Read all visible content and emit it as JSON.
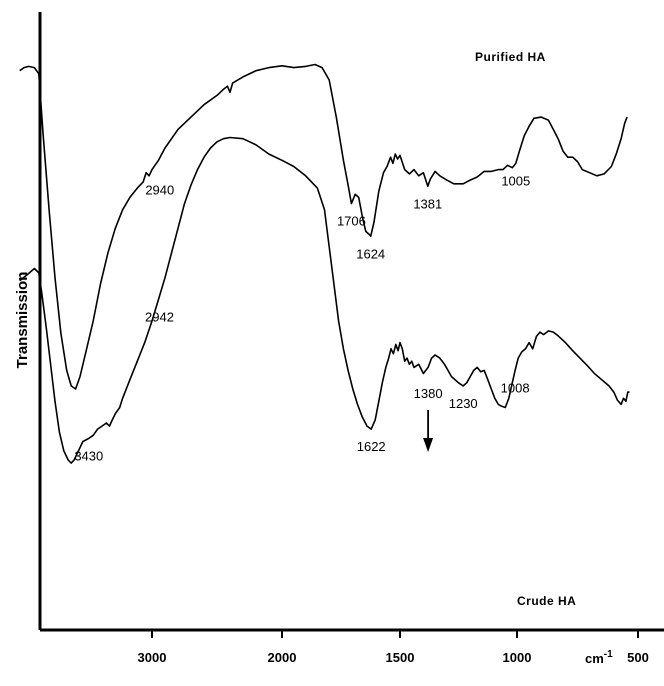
{
  "chart_data": {
    "type": "line",
    "xlabel": "cm-1",
    "ylabel": "Transmission",
    "x_axis_reversed": true,
    "x_ticks": [
      {
        "value": 3000,
        "label": "3000"
      },
      {
        "value": 2000,
        "label": "2000"
      },
      {
        "value": 1500,
        "label": "1500"
      },
      {
        "value": 1000,
        "label": "1000"
      },
      {
        "value": 500,
        "label": "500"
      }
    ],
    "series": [
      {
        "name": "Purified HA",
        "points": [
          [
            3900,
            0.905
          ],
          [
            3870,
            0.91
          ],
          [
            3840,
            0.912
          ],
          [
            3800,
            0.91
          ],
          [
            3770,
            0.9
          ],
          [
            3740,
            0.8
          ],
          [
            3700,
            0.68
          ],
          [
            3660,
            0.57
          ],
          [
            3620,
            0.48
          ],
          [
            3580,
            0.42
          ],
          [
            3550,
            0.395
          ],
          [
            3520,
            0.39
          ],
          [
            3490,
            0.41
          ],
          [
            3450,
            0.45
          ],
          [
            3400,
            0.5
          ],
          [
            3350,
            0.56
          ],
          [
            3300,
            0.61
          ],
          [
            3250,
            0.65
          ],
          [
            3200,
            0.68
          ],
          [
            3150,
            0.7
          ],
          [
            3100,
            0.715
          ],
          [
            3060,
            0.725
          ],
          [
            3040,
            0.74
          ],
          [
            3020,
            0.735
          ],
          [
            3000,
            0.745
          ],
          [
            2950,
            0.76
          ],
          [
            2900,
            0.78
          ],
          [
            2800,
            0.81
          ],
          [
            2700,
            0.83
          ],
          [
            2600,
            0.85
          ],
          [
            2500,
            0.865
          ],
          [
            2450,
            0.875
          ],
          [
            2420,
            0.88
          ],
          [
            2400,
            0.87
          ],
          [
            2380,
            0.885
          ],
          [
            2300,
            0.895
          ],
          [
            2200,
            0.905
          ],
          [
            2100,
            0.91
          ],
          [
            2000,
            0.913
          ],
          [
            1950,
            0.91
          ],
          [
            1900,
            0.912
          ],
          [
            1860,
            0.915
          ],
          [
            1830,
            0.91
          ],
          [
            1800,
            0.89
          ],
          [
            1770,
            0.83
          ],
          [
            1740,
            0.76
          ],
          [
            1720,
            0.72
          ],
          [
            1706,
            0.69
          ],
          [
            1690,
            0.705
          ],
          [
            1675,
            0.7
          ],
          [
            1660,
            0.67
          ],
          [
            1645,
            0.645
          ],
          [
            1630,
            0.64
          ],
          [
            1624,
            0.637
          ],
          [
            1610,
            0.66
          ],
          [
            1590,
            0.71
          ],
          [
            1570,
            0.74
          ],
          [
            1555,
            0.75
          ],
          [
            1540,
            0.765
          ],
          [
            1530,
            0.755
          ],
          [
            1520,
            0.77
          ],
          [
            1510,
            0.762
          ],
          [
            1500,
            0.768
          ],
          [
            1480,
            0.745
          ],
          [
            1460,
            0.738
          ],
          [
            1440,
            0.745
          ],
          [
            1420,
            0.735
          ],
          [
            1400,
            0.74
          ],
          [
            1381,
            0.718
          ],
          [
            1370,
            0.73
          ],
          [
            1350,
            0.742
          ],
          [
            1330,
            0.735
          ],
          [
            1300,
            0.728
          ],
          [
            1270,
            0.722
          ],
          [
            1230,
            0.722
          ],
          [
            1200,
            0.728
          ],
          [
            1170,
            0.733
          ],
          [
            1140,
            0.742
          ],
          [
            1110,
            0.742
          ],
          [
            1080,
            0.745
          ],
          [
            1060,
            0.745
          ],
          [
            1040,
            0.752
          ],
          [
            1020,
            0.748
          ],
          [
            1005,
            0.755
          ],
          [
            990,
            0.775
          ],
          [
            970,
            0.8
          ],
          [
            950,
            0.815
          ],
          [
            930,
            0.828
          ],
          [
            900,
            0.83
          ],
          [
            870,
            0.825
          ],
          [
            850,
            0.81
          ],
          [
            830,
            0.795
          ],
          [
            810,
            0.775
          ],
          [
            790,
            0.765
          ],
          [
            770,
            0.765
          ],
          [
            750,
            0.758
          ],
          [
            730,
            0.745
          ],
          [
            700,
            0.74
          ],
          [
            670,
            0.735
          ],
          [
            640,
            0.738
          ],
          [
            610,
            0.75
          ],
          [
            590,
            0.77
          ],
          [
            570,
            0.795
          ],
          [
            555,
            0.82
          ],
          [
            545,
            0.83
          ]
        ],
        "peak_labels": [
          {
            "x": 2940,
            "y": 0.74,
            "label": "2940"
          },
          {
            "x": 1706,
            "y": 0.69,
            "label": "1706"
          },
          {
            "x": 1624,
            "y": 0.637,
            "label": "1624"
          },
          {
            "x": 1381,
            "y": 0.718,
            "label": "1381"
          },
          {
            "x": 1005,
            "y": 0.755,
            "label": "1005"
          }
        ]
      },
      {
        "name": "Crude HA",
        "points": [
          [
            3900,
            0.565
          ],
          [
            3850,
            0.575
          ],
          [
            3800,
            0.585
          ],
          [
            3770,
            0.578
          ],
          [
            3750,
            0.545
          ],
          [
            3720,
            0.49
          ],
          [
            3690,
            0.43
          ],
          [
            3660,
            0.37
          ],
          [
            3630,
            0.32
          ],
          [
            3600,
            0.29
          ],
          [
            3570,
            0.275
          ],
          [
            3550,
            0.27
          ],
          [
            3530,
            0.275
          ],
          [
            3500,
            0.29
          ],
          [
            3470,
            0.305
          ],
          [
            3430,
            0.31
          ],
          [
            3400,
            0.315
          ],
          [
            3370,
            0.325
          ],
          [
            3340,
            0.33
          ],
          [
            3310,
            0.335
          ],
          [
            3290,
            0.33
          ],
          [
            3270,
            0.34
          ],
          [
            3250,
            0.35
          ],
          [
            3220,
            0.36
          ],
          [
            3200,
            0.375
          ],
          [
            3150,
            0.405
          ],
          [
            3100,
            0.435
          ],
          [
            3050,
            0.465
          ],
          [
            3000,
            0.5
          ],
          [
            2950,
            0.535
          ],
          [
            2900,
            0.57
          ],
          [
            2850,
            0.61
          ],
          [
            2800,
            0.65
          ],
          [
            2750,
            0.69
          ],
          [
            2700,
            0.72
          ],
          [
            2650,
            0.745
          ],
          [
            2600,
            0.765
          ],
          [
            2550,
            0.78
          ],
          [
            2500,
            0.79
          ],
          [
            2450,
            0.795
          ],
          [
            2400,
            0.797
          ],
          [
            2300,
            0.795
          ],
          [
            2200,
            0.785
          ],
          [
            2100,
            0.77
          ],
          [
            2000,
            0.76
          ],
          [
            1950,
            0.75
          ],
          [
            1900,
            0.735
          ],
          [
            1850,
            0.715
          ],
          [
            1820,
            0.68
          ],
          [
            1800,
            0.62
          ],
          [
            1780,
            0.56
          ],
          [
            1760,
            0.5
          ],
          [
            1740,
            0.455
          ],
          [
            1720,
            0.42
          ],
          [
            1700,
            0.39
          ],
          [
            1680,
            0.365
          ],
          [
            1660,
            0.345
          ],
          [
            1640,
            0.33
          ],
          [
            1622,
            0.325
          ],
          [
            1605,
            0.34
          ],
          [
            1590,
            0.37
          ],
          [
            1575,
            0.4
          ],
          [
            1560,
            0.425
          ],
          [
            1548,
            0.44
          ],
          [
            1538,
            0.455
          ],
          [
            1528,
            0.447
          ],
          [
            1518,
            0.462
          ],
          [
            1508,
            0.452
          ],
          [
            1500,
            0.465
          ],
          [
            1490,
            0.455
          ],
          [
            1480,
            0.435
          ],
          [
            1470,
            0.44
          ],
          [
            1460,
            0.43
          ],
          [
            1450,
            0.435
          ],
          [
            1440,
            0.425
          ],
          [
            1420,
            0.43
          ],
          [
            1400,
            0.415
          ],
          [
            1380,
            0.425
          ],
          [
            1365,
            0.44
          ],
          [
            1350,
            0.445
          ],
          [
            1330,
            0.44
          ],
          [
            1310,
            0.43
          ],
          [
            1295,
            0.42
          ],
          [
            1280,
            0.41
          ],
          [
            1265,
            0.405
          ],
          [
            1250,
            0.4
          ],
          [
            1230,
            0.395
          ],
          [
            1215,
            0.4
          ],
          [
            1200,
            0.41
          ],
          [
            1185,
            0.42
          ],
          [
            1170,
            0.425
          ],
          [
            1155,
            0.418
          ],
          [
            1140,
            0.42
          ],
          [
            1125,
            0.405
          ],
          [
            1110,
            0.39
          ],
          [
            1095,
            0.375
          ],
          [
            1080,
            0.365
          ],
          [
            1065,
            0.362
          ],
          [
            1050,
            0.36
          ],
          [
            1035,
            0.375
          ],
          [
            1020,
            0.4
          ],
          [
            1008,
            0.42
          ],
          [
            995,
            0.44
          ],
          [
            980,
            0.45
          ],
          [
            965,
            0.455
          ],
          [
            950,
            0.465
          ],
          [
            935,
            0.455
          ],
          [
            920,
            0.475
          ],
          [
            905,
            0.482
          ],
          [
            890,
            0.478
          ],
          [
            870,
            0.484
          ],
          [
            850,
            0.482
          ],
          [
            830,
            0.476
          ],
          [
            800,
            0.465
          ],
          [
            770,
            0.452
          ],
          [
            740,
            0.44
          ],
          [
            710,
            0.428
          ],
          [
            680,
            0.415
          ],
          [
            650,
            0.405
          ],
          [
            620,
            0.395
          ],
          [
            600,
            0.385
          ],
          [
            585,
            0.372
          ],
          [
            570,
            0.365
          ],
          [
            560,
            0.375
          ],
          [
            550,
            0.37
          ],
          [
            542,
            0.385
          ],
          [
            535,
            0.385
          ]
        ],
        "peak_labels": [
          {
            "x": 3430,
            "y": 0.31,
            "label": "3430"
          },
          {
            "x": 2942,
            "y": 0.535,
            "label": "2942"
          },
          {
            "x": 1622,
            "y": 0.325,
            "label": "1622"
          },
          {
            "x": 1230,
            "y": 0.395,
            "label": "1230"
          },
          {
            "x": 1008,
            "y": 0.42,
            "label": "1008"
          }
        ]
      }
    ],
    "annotation": {
      "label": "1380",
      "x": 1380,
      "arrow": true
    }
  }
}
